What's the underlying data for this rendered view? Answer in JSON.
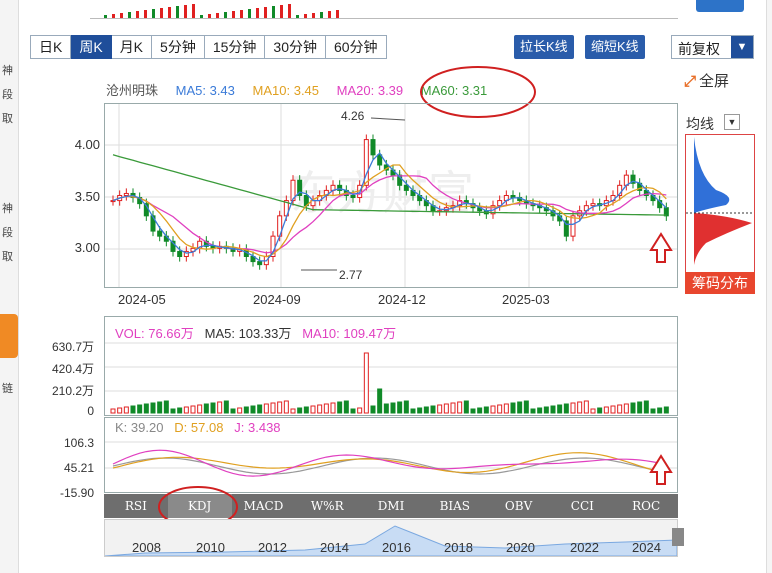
{
  "left_strip": {
    "chars": [
      "神",
      "段",
      "取",
      "神",
      "段",
      "取",
      "链"
    ]
  },
  "period_tabs": [
    {
      "label": "日K",
      "active": false
    },
    {
      "label": "周K",
      "active": true
    },
    {
      "label": "月K",
      "active": false
    },
    {
      "label": "5分钟",
      "active": false
    },
    {
      "label": "15分钟",
      "active": false
    },
    {
      "label": "30分钟",
      "active": false
    },
    {
      "label": "60分钟",
      "active": false
    }
  ],
  "toolbar": {
    "stretch_label": "拉长K线",
    "shrink_label": "缩短K线",
    "adjust_label": "前复权",
    "fullscreen_label": "全屏"
  },
  "legend": {
    "name": "沧州明珠",
    "ma5": "MA5: 3.43",
    "ma10": "MA10: 3.45",
    "ma20": "MA20: 3.39",
    "ma60": "MA60: 3.31"
  },
  "colors": {
    "ma5": "#3b7bd8",
    "ma10": "#e0a020",
    "ma20": "#e040c0",
    "ma60": "#3a9a3a",
    "up": "#e02020",
    "down": "#108a28",
    "circle": "#d02020"
  },
  "main_axis": {
    "y_labels": [
      "4.00",
      "3.50",
      "3.00"
    ],
    "x_labels": [
      "2024-05",
      "2024-09",
      "2024-12",
      "2025-03"
    ]
  },
  "annotations": {
    "high": "4.26",
    "low": "2.77"
  },
  "volume": {
    "vol": "VOL: 76.66万",
    "ma5": "MA5: 103.33万",
    "ma10": "MA10: 109.47万",
    "y_labels": [
      "630.7万",
      "420.4万",
      "210.2万",
      "0"
    ]
  },
  "kdj": {
    "k": "K: 39.20",
    "d": "D: 57.08",
    "j": "J: 3.438",
    "y_labels": [
      "106.3",
      "45.21",
      "-15.90"
    ]
  },
  "indicator_tabs": [
    {
      "label": "RSI",
      "active": false
    },
    {
      "label": "KDJ",
      "active": true
    },
    {
      "label": "MACD",
      "active": false
    },
    {
      "label": "W%R",
      "active": false
    },
    {
      "label": "DMI",
      "active": false
    },
    {
      "label": "BIAS",
      "active": false
    },
    {
      "label": "OBV",
      "active": false
    },
    {
      "label": "CCI",
      "active": false
    },
    {
      "label": "ROC",
      "active": false
    }
  ],
  "timeline": {
    "labels": [
      "2008",
      "2010",
      "2012",
      "2014",
      "2016",
      "2018",
      "2020",
      "2022",
      "2024"
    ]
  },
  "distribution": {
    "avg_label": "均线",
    "button_label": "筹码分布"
  }
}
